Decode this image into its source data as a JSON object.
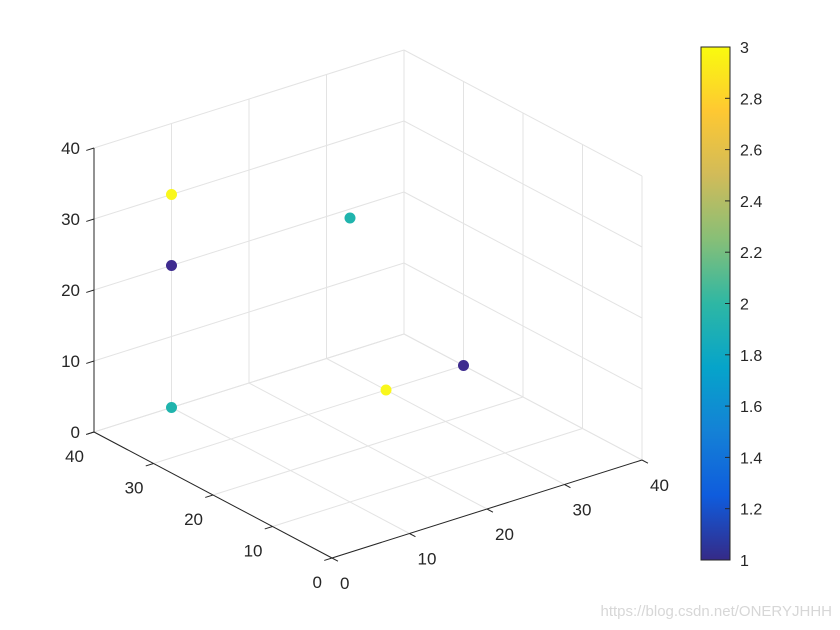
{
  "chart_data": {
    "type": "scatter3d",
    "title": "",
    "xlabel": "",
    "ylabel": "",
    "zlabel": "",
    "xlim": [
      0,
      40
    ],
    "ylim": [
      0,
      40
    ],
    "zlim": [
      0,
      40
    ],
    "x_ticks": [
      "0",
      "10",
      "20",
      "30",
      "40"
    ],
    "y_ticks": [
      "0",
      "10",
      "20",
      "30",
      "40"
    ],
    "z_ticks": [
      "0",
      "10",
      "20",
      "30",
      "40"
    ],
    "grid": true,
    "box": false,
    "points": [
      {
        "x": 10,
        "y": 40,
        "z": 20,
        "c": 1
      },
      {
        "x": 10,
        "y": 40,
        "z": 30,
        "c": 3
      },
      {
        "x": 10,
        "y": 10,
        "z": 40,
        "c": 2
      },
      {
        "x": 40,
        "y": 30,
        "z": 0,
        "c": 1
      },
      {
        "x": 10,
        "y": 40,
        "z": 0,
        "c": 2
      },
      {
        "x": 30,
        "y": 30,
        "z": 0,
        "c": 3
      }
    ],
    "colorbar": {
      "location": "right",
      "limits": [
        1,
        3
      ],
      "ticks": [
        "1",
        "1.2",
        "1.4",
        "1.6",
        "1.8",
        "2",
        "2.2",
        "2.4",
        "2.6",
        "2.8",
        "3"
      ],
      "colormap": "parula",
      "colormap_stops": [
        "#352a87",
        "#0f5cdd",
        "#1481d6",
        "#06a4ca",
        "#2eb7a4",
        "#87bf77",
        "#d1bb59",
        "#fec832",
        "#f9fb0e"
      ]
    },
    "marker_colors": {
      "1": "#3e2b8f",
      "2": "#20b4ad",
      "3": "#f9f71c"
    }
  },
  "watermark": "https://blog.csdn.net/ONERYJHHH"
}
